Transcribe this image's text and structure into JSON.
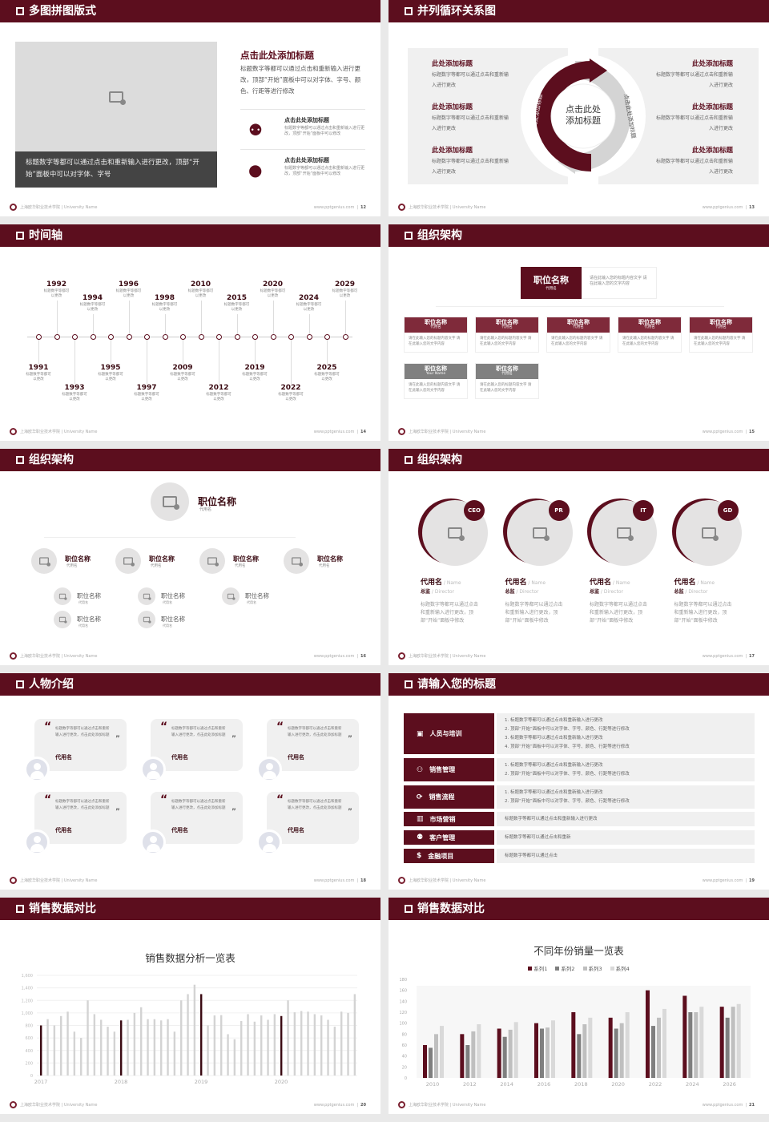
{
  "colors": {
    "accent": "#5c0e1e",
    "light_gray": "#dcdcdc",
    "dark_gray": "#444444"
  },
  "footer": {
    "school": "上海欧华职业技术学院 | University Name",
    "url": "www.pptgenius.com"
  },
  "slides": [
    {
      "title": "多图拼图版式",
      "page": "12",
      "caption": "标题数字等都可以通过点击和重新输入进行更改，顶部“开始”面板中可以对字体、字号",
      "heading": "点击此处添加标题",
      "body": "标题数字等都可以通过点击和重新输入进行更改，顶部“开始”面板中可以对字体、字号、颜色、行距等进行修改",
      "items": [
        {
          "icon": "users-icon",
          "title": "点击此处添加标题",
          "desc": "标题数字等都可以通过点击和重新输入进行更改，顶部“开始”面板中可以修改"
        },
        {
          "icon": "user-icon",
          "title": "点击此处添加标题",
          "desc": "标题数字等都可以通过点击和重新输入进行更改，顶部“开始”面板中可以修改"
        }
      ]
    },
    {
      "title": "并列循环关系图",
      "page": "13",
      "center": "点击此处添加标题",
      "arc_left": "点击此处添加标题",
      "arc_right": "点击此处添加标题",
      "left_items": [
        {
          "title": "此处添加标题",
          "desc": "标题数字等都可以通过点击和重新输入进行更改"
        },
        {
          "title": "此处添加标题",
          "desc": "标题数字等都可以通过点击和重新输入进行更改"
        },
        {
          "title": "此处添加标题",
          "desc": "标题数字等都可以通过点击和重新输入进行更改"
        }
      ],
      "right_items": [
        {
          "title": "此处添加标题",
          "desc": "标题数字等都可以通过点击和重新输入进行更改"
        },
        {
          "title": "此处添加标题",
          "desc": "标题数字等都可以通过点击和重新输入进行更改"
        },
        {
          "title": "此处添加标题",
          "desc": "标题数字等都可以通过点击和重新输入进行更改"
        }
      ]
    },
    {
      "title": "时间轴",
      "page": "14",
      "events": [
        {
          "year": "1991",
          "desc": "标题数字等都可以更改"
        },
        {
          "year": "1992",
          "desc": "标题数字等都可以更改"
        },
        {
          "year": "1993",
          "desc": "标题数字等都可以更改"
        },
        {
          "year": "1994",
          "desc": "标题数字等都可以更改"
        },
        {
          "year": "1995",
          "desc": "标题数字等都可以更改"
        },
        {
          "year": "1996",
          "desc": "标题数字等都可以更改"
        },
        {
          "year": "1997",
          "desc": "标题数字等都可以更改"
        },
        {
          "year": "1998",
          "desc": "标题数字等都可以更改"
        },
        {
          "year": "2009",
          "desc": "标题数字等都可以更改"
        },
        {
          "year": "2010",
          "desc": "标题数字等都可以更改"
        },
        {
          "year": "2012",
          "desc": "标题数字等都可以更改"
        },
        {
          "year": "2015",
          "desc": "标题数字等都可以更改"
        },
        {
          "year": "2019",
          "desc": "标题数字等都可以更改"
        },
        {
          "year": "2020",
          "desc": "标题数字等都可以更改"
        },
        {
          "year": "2022",
          "desc": "标题数字等都可以更改"
        },
        {
          "year": "2024",
          "desc": "标题数字等都可以更改"
        },
        {
          "year": "2025",
          "desc": "标题数字等都可以更改"
        },
        {
          "year": "2029",
          "desc": "标题数字等都可以更改"
        }
      ]
    },
    {
      "title": "组织架构",
      "page": "15",
      "top": {
        "name": "职位名称",
        "sub": "代用名",
        "desc": "请在此输入您的标题内容文字 请在此输入您的文字内容"
      },
      "row1": [
        {
          "name": "职位名称",
          "sub": "代用名",
          "desc": "请在此输入您的标题内容文字 请在此输入您的文字内容"
        },
        {
          "name": "职位名称",
          "sub": "代用名",
          "desc": "请在此输入您的标题内容文字 请在此输入您的文字内容"
        },
        {
          "name": "职位名称",
          "sub": "代用名",
          "desc": "请在此输入您的标题内容文字 请在此输入您的文字内容"
        },
        {
          "name": "职位名称",
          "sub": "代用名",
          "desc": "请在此输入您的标题内容文字 请在此输入您的文字内容"
        },
        {
          "name": "职位名称",
          "sub": "代用名",
          "desc": "请在此输入您的标题内容文字 请在此输入您的文字内容"
        }
      ],
      "row2": [
        {
          "name": "职位名称",
          "sub": "Your Name",
          "desc": "请在此输入您的标题内容文字 请在此输入您的文字内容"
        },
        {
          "name": "职位名称",
          "sub": "代用名",
          "desc": "请在此输入您的标题内容文字 请在此输入您的文字内容"
        }
      ]
    },
    {
      "title": "组织架构",
      "page": "16",
      "top": {
        "name": "职位名称",
        "sub": "代用名"
      },
      "level2": [
        {
          "name": "职位名称",
          "sub": "代用名",
          "children": [
            {
              "name": "职位名称",
              "sub": "代用名"
            },
            {
              "name": "职位名称",
              "sub": "代用名"
            }
          ]
        },
        {
          "name": "职位名称",
          "sub": "代用名",
          "children": [
            {
              "name": "职位名称",
              "sub": "代用名"
            },
            {
              "name": "职位名称",
              "sub": "代用名"
            }
          ]
        },
        {
          "name": "职位名称",
          "sub": "代用名",
          "children": [
            {
              "name": "职位名称",
              "sub": "代用名"
            }
          ]
        },
        {
          "name": "职位名称",
          "sub": "代用名",
          "children": []
        }
      ]
    },
    {
      "title": "组织架构",
      "page": "17",
      "members": [
        {
          "badge": "CEO",
          "name": "代用名",
          "name_en": " / Name",
          "role": "总监",
          "role_en": " / Director",
          "desc": "标题数字等都可以通过点击和重新输入进行更改，顶部“开始”面板中修改"
        },
        {
          "badge": "PR",
          "name": "代用名",
          "name_en": " / Name",
          "role": "总监",
          "role_en": " / Director",
          "desc": "标题数字等都可以通过点击和重新输入进行更改，顶部“开始”面板中修改"
        },
        {
          "badge": "IT",
          "name": "代用名",
          "name_en": " / Name",
          "role": "总监",
          "role_en": " / Director",
          "desc": "标题数字等都可以通过点击和重新输入进行更改，顶部“开始”面板中修改"
        },
        {
          "badge": "GD",
          "name": "代用名",
          "name_en": " / Name",
          "role": "总监",
          "role_en": " / Director",
          "desc": "标题数字等都可以通过点击和重新输入进行更改，顶部“开始”面板中修改"
        }
      ]
    },
    {
      "title": "人物介绍",
      "page": "18",
      "quotes": [
        {
          "text": "标题数字等都可以通过点击和重新输入进行更改，点击此处添加标题",
          "name": "代用名"
        },
        {
          "text": "标题数字等都可以通过点击和重新输入进行更改，点击此处添加标题",
          "name": "代用名"
        },
        {
          "text": "标题数字等都可以通过点击和重新输入进行更改，点击此处添加标题",
          "name": "代用名"
        },
        {
          "text": "标题数字等都可以通过点击和重新输入进行更改，点击此处添加标题",
          "name": "代用名"
        },
        {
          "text": "标题数字等都可以通过点击和重新输入进行更改，点击此处添加标题",
          "name": "代用名"
        },
        {
          "text": "标题数字等都可以通过点击和重新输入进行更改，点击此处添加标题",
          "name": "代用名"
        }
      ]
    },
    {
      "title": "请输入您的标题",
      "page": "19",
      "rows": [
        {
          "icon": "training-icon",
          "glyph": "▣",
          "label": "人员与培训",
          "lines": [
            "1.  标题数字等都可以通过点击和重新输入进行更改",
            "2.  顶部“开始”面板中可以对字体、字号、颜色、行距等进行修改",
            "3.  标题数字等都可以通过点击和重新输入进行更改",
            "4.  顶部“开始”面板中可以对字体、字号、颜色、行距等进行修改"
          ]
        },
        {
          "icon": "sales-manager-icon",
          "glyph": "⚇",
          "label": "销售管理",
          "lines": [
            "1.  标题数字等都可以通过点击和重新输入进行更改",
            "2.  顶部“开始”面板中可以对字体、字号、颜色、行距等进行修改"
          ]
        },
        {
          "icon": "cycle-icon",
          "glyph": "⟳",
          "label": "销售流程",
          "lines": [
            "1.  标题数字等都可以通过点击和重新输入进行更改",
            "2.  顶部“开始”面板中可以对字体、字号、颜色、行距等进行修改"
          ]
        },
        {
          "icon": "bar-chart-icon",
          "glyph": "▥",
          "label": "市场营销",
          "lines": [
            "标题数字等都可以通过点击和重新输入进行更改"
          ]
        },
        {
          "icon": "group-icon",
          "glyph": "⚉",
          "label": "客户管理",
          "lines": [
            "标题数字等都可以通过点击和重新"
          ]
        },
        {
          "icon": "money-hand-icon",
          "glyph": "$",
          "label": "金融项目",
          "lines": [
            "标题数字等都可以通过点击"
          ]
        }
      ]
    },
    {
      "title": "销售数据对比",
      "page": "20"
    },
    {
      "title": "销售数据对比",
      "page": "21"
    }
  ],
  "chart_data": [
    {
      "type": "bar",
      "title": "销售数据分析一览表",
      "xlabel": "",
      "ylabel": "",
      "ylim": [
        0,
        1600
      ],
      "yticks": [
        "0",
        "200",
        "400",
        "600",
        "800",
        "1,000",
        "1,200",
        "1,400",
        "1,600"
      ],
      "x_labels": [
        "2017",
        "2018",
        "2019",
        "2020"
      ],
      "highlight_color": "#3a0a12",
      "bar_color": "#d3d3d3",
      "grid": true,
      "values": [
        800,
        900,
        800,
        950,
        1020,
        700,
        600,
        1200,
        980,
        890,
        780,
        700,
        880,
        890,
        1000,
        1090,
        900,
        900,
        880,
        900,
        700,
        1200,
        1300,
        1450,
        1300,
        800,
        960,
        965,
        660,
        580,
        870,
        980,
        860,
        960,
        890,
        980,
        950,
        1200,
        1010,
        1030,
        1020,
        980,
        960,
        890,
        780,
        1020,
        1000,
        1300
      ]
    },
    {
      "type": "bar",
      "title": "不同年份销量一览表",
      "xlabel": "",
      "ylabel": "",
      "ylim": [
        0,
        180
      ],
      "yticks": [
        "0",
        "20",
        "40",
        "60",
        "80",
        "100",
        "120",
        "140",
        "160",
        "180"
      ],
      "categories": [
        "2010",
        "2012",
        "2014",
        "2016",
        "2018",
        "2020",
        "2022",
        "2024",
        "2026"
      ],
      "legend": "top",
      "grid": false,
      "series": [
        {
          "name": "系列1",
          "color": "#5c0e1e",
          "values": [
            60,
            80,
            90,
            100,
            120,
            110,
            160,
            150,
            130
          ]
        },
        {
          "name": "系列2",
          "color": "#7f7f7f",
          "values": [
            55,
            60,
            75,
            90,
            80,
            90,
            95,
            120,
            110
          ]
        },
        {
          "name": "系列3",
          "color": "#bfbfbf",
          "values": [
            80,
            85,
            88,
            92,
            98,
            100,
            110,
            120,
            130
          ]
        },
        {
          "name": "系列4",
          "color": "#d9d9d9",
          "values": [
            95,
            98,
            102,
            105,
            110,
            120,
            126,
            130,
            135
          ]
        }
      ]
    }
  ]
}
